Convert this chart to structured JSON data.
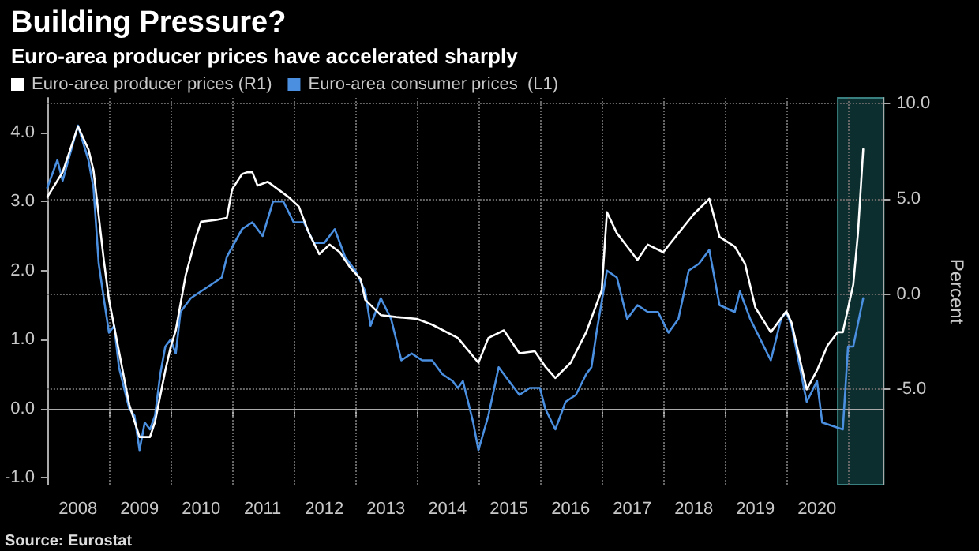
{
  "chart_data": {
    "type": "line",
    "title": "Building Pressure?",
    "subtitle": "Euro-area producer prices have accelerated sharply",
    "y2label": "Percent",
    "annotations": [
      "Source: Eurostat"
    ],
    "series": [
      {
        "name": "Euro-area producer prices (R1)",
        "color": "#ffffff",
        "axis": "y2",
        "x": [
          "2008-01",
          "2008-04",
          "2008-07",
          "2008-09",
          "2008-10",
          "2008-12",
          "2009-01",
          "2009-03",
          "2009-05",
          "2009-07",
          "2009-09",
          "2009-10",
          "2009-12",
          "2010-01",
          "2010-02",
          "2010-04",
          "2010-06",
          "2010-07",
          "2010-10",
          "2010-12",
          "2011-01",
          "2011-03",
          "2011-04",
          "2011-05",
          "2011-06",
          "2011-08",
          "2011-10",
          "2011-12",
          "2012-02",
          "2012-04",
          "2012-06",
          "2012-08",
          "2012-10",
          "2012-12",
          "2013-02",
          "2013-03",
          "2013-06",
          "2013-09",
          "2014-01",
          "2014-04",
          "2014-09",
          "2015-01",
          "2015-03",
          "2015-06",
          "2015-09",
          "2015-12",
          "2016-02",
          "2016-04",
          "2016-07",
          "2016-10",
          "2017-01",
          "2017-02",
          "2017-04",
          "2017-06",
          "2017-08",
          "2017-10",
          "2018-01",
          "2018-04",
          "2018-07",
          "2018-10",
          "2018-12",
          "2019-03",
          "2019-05",
          "2019-07",
          "2019-10",
          "2020-01",
          "2020-02",
          "2020-05",
          "2020-07",
          "2020-09",
          "2020-11",
          "2020-12",
          "2021-02",
          "2021-03",
          "2021-04"
        ],
        "values": [
          5.1,
          6.4,
          8.8,
          7.6,
          6.5,
          1.8,
          -0.3,
          -3.0,
          -5.8,
          -7.5,
          -7.5,
          -6.7,
          -4.0,
          -2.8,
          -1.9,
          1.0,
          3.0,
          3.8,
          3.9,
          4.0,
          5.5,
          6.3,
          6.4,
          6.4,
          5.7,
          5.9,
          5.5,
          5.1,
          4.6,
          3.2,
          2.1,
          2.6,
          2.2,
          1.4,
          0.8,
          -0.3,
          -1.1,
          -1.2,
          -1.3,
          -1.6,
          -2.3,
          -3.6,
          -2.3,
          -1.9,
          -3.1,
          -3.0,
          -3.8,
          -4.4,
          -3.6,
          -2.0,
          0.2,
          4.3,
          3.2,
          2.5,
          1.8,
          2.6,
          2.2,
          3.2,
          4.2,
          5.0,
          3.0,
          2.5,
          1.6,
          -0.7,
          -2.0,
          -0.9,
          -1.5,
          -5.0,
          -4.0,
          -2.7,
          -2.0,
          -2.0,
          0.5,
          3.2,
          7.6
        ]
      },
      {
        "name": "Euro-area consumer prices  (L1)",
        "color": "#4a8fe0",
        "x": [
          "2008-01",
          "2008-03",
          "2008-04",
          "2008-07",
          "2008-09",
          "2008-10",
          "2008-11",
          "2008-12",
          "2009-01",
          "2009-02",
          "2009-03",
          "2009-05",
          "2009-06",
          "2009-07",
          "2009-08",
          "2009-09",
          "2009-10",
          "2009-11",
          "2009-12",
          "2010-01",
          "2010-02",
          "2010-03",
          "2010-05",
          "2010-07",
          "2010-09",
          "2010-11",
          "2010-12",
          "2011-03",
          "2011-05",
          "2011-07",
          "2011-09",
          "2011-11",
          "2012-01",
          "2012-03",
          "2012-05",
          "2012-07",
          "2012-09",
          "2012-11",
          "2013-01",
          "2013-03",
          "2013-04",
          "2013-06",
          "2013-08",
          "2013-10",
          "2013-12",
          "2014-02",
          "2014-04",
          "2014-06",
          "2014-08",
          "2014-09",
          "2014-10",
          "2014-12",
          "2015-01",
          "2015-03",
          "2015-05",
          "2015-07",
          "2015-09",
          "2015-11",
          "2016-01",
          "2016-02",
          "2016-04",
          "2016-06",
          "2016-08",
          "2016-10",
          "2016-11",
          "2016-12",
          "2017-02",
          "2017-04",
          "2017-06",
          "2017-08",
          "2017-10",
          "2017-12",
          "2018-02",
          "2018-04",
          "2018-06",
          "2018-08",
          "2018-10",
          "2018-12",
          "2019-03",
          "2019-04",
          "2019-06",
          "2019-08",
          "2019-10",
          "2019-12",
          "2020-01",
          "2020-02",
          "2020-05",
          "2020-07",
          "2020-08",
          "2020-12",
          "2021-01",
          "2021-02",
          "2021-04"
        ],
        "values": [
          3.2,
          3.6,
          3.3,
          4.1,
          3.6,
          3.2,
          2.1,
          1.6,
          1.1,
          1.2,
          0.6,
          0.0,
          -0.1,
          -0.6,
          -0.2,
          -0.3,
          -0.1,
          0.5,
          0.9,
          1.0,
          0.8,
          1.4,
          1.6,
          1.7,
          1.8,
          1.9,
          2.2,
          2.6,
          2.7,
          2.5,
          3.0,
          3.0,
          2.7,
          2.7,
          2.4,
          2.4,
          2.6,
          2.2,
          2.0,
          1.7,
          1.2,
          1.6,
          1.3,
          0.7,
          0.8,
          0.7,
          0.7,
          0.5,
          0.4,
          0.3,
          0.4,
          -0.2,
          -0.6,
          -0.1,
          0.6,
          0.4,
          0.2,
          0.3,
          0.3,
          0.0,
          -0.3,
          0.1,
          0.2,
          0.5,
          0.6,
          1.1,
          2.0,
          1.9,
          1.3,
          1.5,
          1.4,
          1.4,
          1.1,
          1.3,
          2.0,
          2.1,
          2.3,
          1.5,
          1.4,
          1.7,
          1.3,
          1.0,
          0.7,
          1.3,
          1.4,
          1.2,
          0.1,
          0.4,
          -0.2,
          -0.3,
          0.9,
          0.9,
          1.6
        ]
      }
    ],
    "xlim": [
      "2008-01",
      "2021-08"
    ],
    "xticks": [
      {
        "value": "2008-07",
        "label": "2008"
      },
      {
        "value": "2009-07",
        "label": "2009"
      },
      {
        "value": "2010-07",
        "label": "2010"
      },
      {
        "value": "2011-07",
        "label": "2011"
      },
      {
        "value": "2012-07",
        "label": "2012"
      },
      {
        "value": "2013-07",
        "label": "2013"
      },
      {
        "value": "2014-07",
        "label": "2014"
      },
      {
        "value": "2015-07",
        "label": "2015"
      },
      {
        "value": "2016-07",
        "label": "2016"
      },
      {
        "value": "2017-07",
        "label": "2017"
      },
      {
        "value": "2018-07",
        "label": "2018"
      },
      {
        "value": "2019-07",
        "label": "2019"
      },
      {
        "value": "2020-07",
        "label": "2020"
      },
      {
        "value": "2009-01",
        "label": null
      },
      {
        "value": "2010-01",
        "label": null
      },
      {
        "value": "2011-01",
        "label": null
      },
      {
        "value": "2012-01",
        "label": null
      },
      {
        "value": "2013-01",
        "label": null
      },
      {
        "value": "2014-01",
        "label": null
      },
      {
        "value": "2015-01",
        "label": null
      },
      {
        "value": "2016-01",
        "label": null
      },
      {
        "value": "2017-01",
        "label": null
      },
      {
        "value": "2018-01",
        "label": null
      },
      {
        "value": "2019-01",
        "label": null
      },
      {
        "value": "2020-01",
        "label": null
      },
      {
        "value": "2021-01",
        "label": null
      }
    ],
    "ylim": [
      -1.1,
      4.5
    ],
    "yticks": [
      {
        "value": -1,
        "label": "-1.0"
      },
      {
        "value": 0,
        "label": "0.0"
      },
      {
        "value": 1,
        "label": "1.0"
      },
      {
        "value": 2,
        "label": "2.0"
      },
      {
        "value": 3,
        "label": "3.0"
      },
      {
        "value": 4,
        "label": "4.0"
      }
    ],
    "y2lim": [
      -10,
      10.3
    ],
    "y2ticks": [
      {
        "value": -5,
        "label": "-5.0"
      },
      {
        "value": 0,
        "label": "0.0"
      },
      {
        "value": 5,
        "label": "5.0"
      },
      {
        "value": 10,
        "label": "10.0"
      }
    ],
    "bands": [
      {
        "axis": "x",
        "from": "2020-11",
        "to": "2021-08",
        "color": "#0c2e2e"
      }
    ],
    "grid": true,
    "legend": "top left",
    "marker": "none",
    "line_style": "solid"
  }
}
